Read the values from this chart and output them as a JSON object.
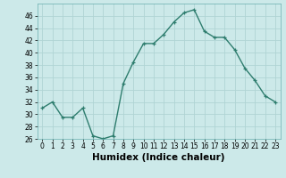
{
  "x": [
    0,
    1,
    2,
    3,
    4,
    5,
    6,
    7,
    8,
    9,
    10,
    11,
    12,
    13,
    14,
    15,
    16,
    17,
    18,
    19,
    20,
    21,
    22,
    23
  ],
  "y": [
    31,
    32,
    29.5,
    29.5,
    31,
    26.5,
    26,
    26.5,
    35,
    38.5,
    41.5,
    41.5,
    43,
    45,
    46.5,
    47,
    43.5,
    42.5,
    42.5,
    40.5,
    37.5,
    35.5,
    33,
    32
  ],
  "line_color": "#2e7d6e",
  "marker": "+",
  "marker_size": 3,
  "bg_color": "#cce9e9",
  "grid_color": "#b0d4d4",
  "xlabel": "Humidex (Indice chaleur)",
  "ylim": [
    26,
    48
  ],
  "yticks": [
    26,
    28,
    30,
    32,
    34,
    36,
    38,
    40,
    42,
    44,
    46
  ],
  "xlim": [
    -0.5,
    23.5
  ],
  "xticks": [
    0,
    1,
    2,
    3,
    4,
    5,
    6,
    7,
    8,
    9,
    10,
    11,
    12,
    13,
    14,
    15,
    16,
    17,
    18,
    19,
    20,
    21,
    22,
    23
  ],
  "tick_fontsize": 5.5,
  "xlabel_fontsize": 7.5,
  "line_width": 1.0,
  "marker_edge_width": 0.9
}
